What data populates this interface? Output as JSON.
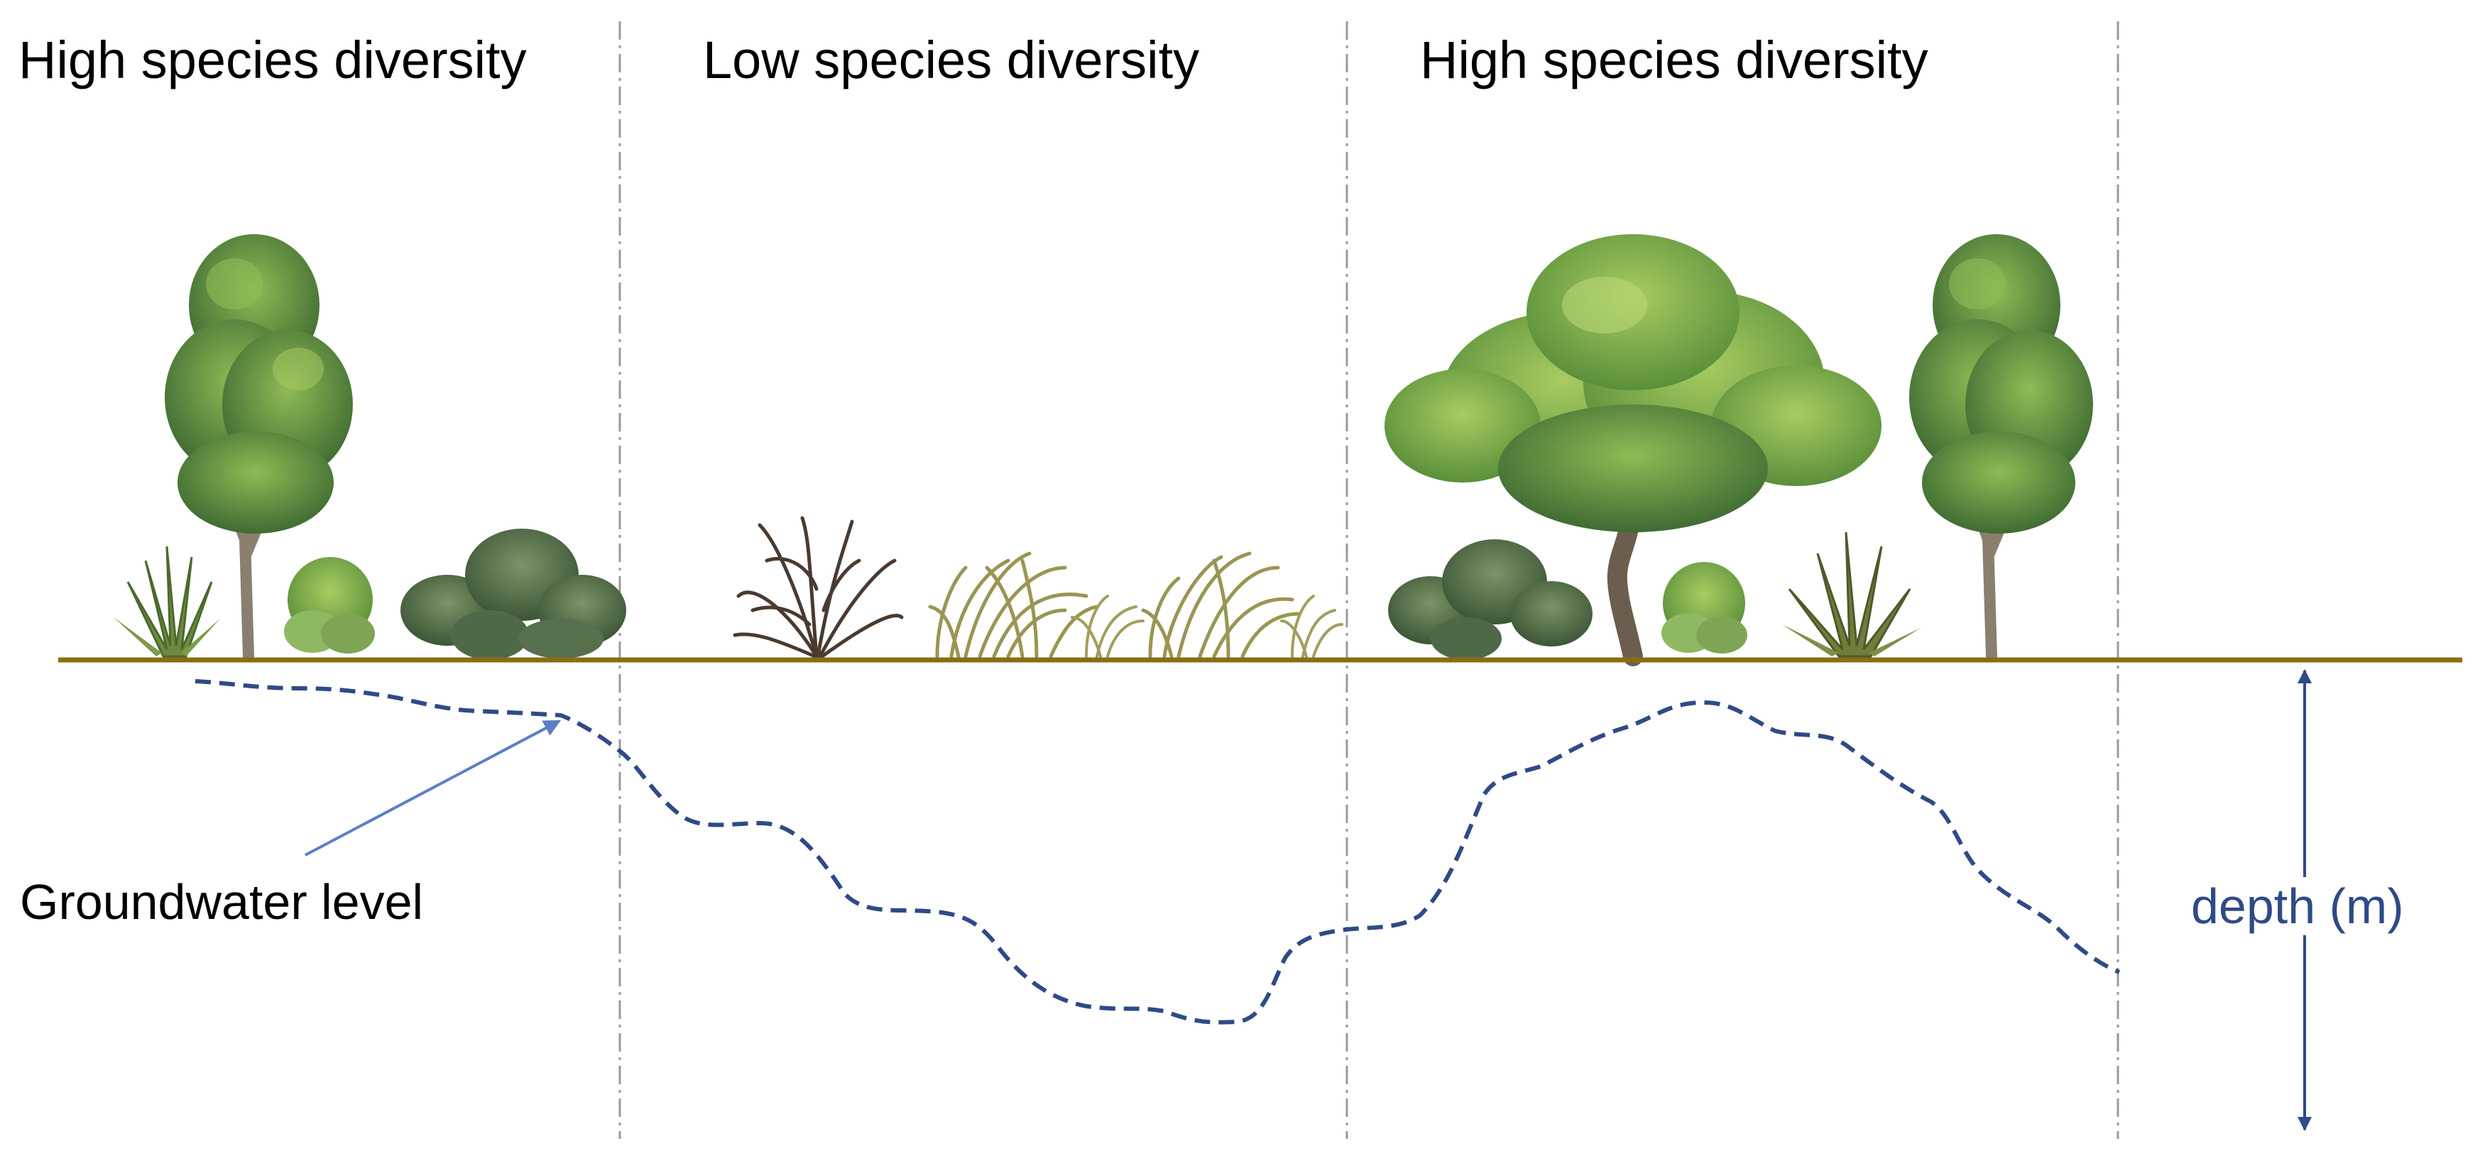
{
  "zones": [
    {
      "label": "High species diversity"
    },
    {
      "label": "Low species diversity"
    },
    {
      "label": "High species diversity"
    }
  ],
  "groundwater": {
    "label": "Groundwater level"
  },
  "depth_axis": {
    "label": "depth (m)"
  },
  "colors": {
    "ground_line": "#8a6d12",
    "groundwater_line": "#2f4a86",
    "pointer_arrow": "#5b7fc4",
    "depth_arrow": "#2f4a86",
    "zone_divider": "#9a9a9a",
    "foliage_dark": "#3f6b33",
    "foliage_light": "#7aa845",
    "trunk": "#8a7f6e",
    "grass": "#9a9553",
    "shrub_dead": "#4a3a30"
  }
}
